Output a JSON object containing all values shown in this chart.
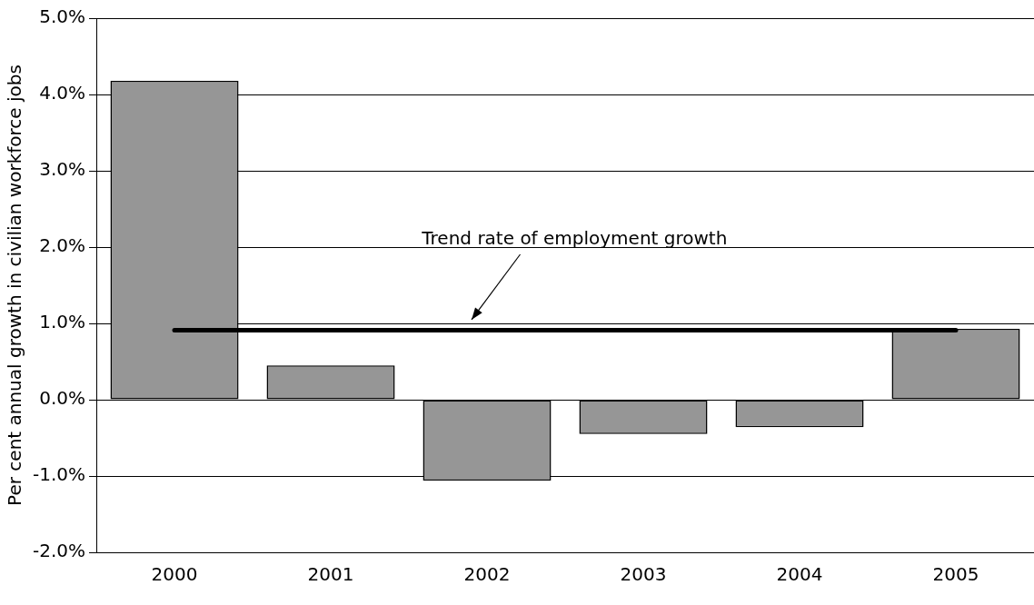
{
  "chart_data": {
    "type": "bar",
    "ylabel": "Per cent annual growth in civilian workforce jobs",
    "categories": [
      "2000",
      "2001",
      "2002",
      "2003",
      "2004",
      "2005"
    ],
    "series": [
      {
        "color": "#969696",
        "values": [
          4.18,
          0.45,
          -1.06,
          -0.45,
          -0.36,
          0.93
        ]
      },
      {
        "type": "line",
        "color": "#000000",
        "values": [
          0.91,
          0.91,
          0.91,
          0.91,
          0.91,
          0.91
        ]
      }
    ],
    "ylim": [
      -2,
      5
    ],
    "yticks": [
      {
        "value": -2,
        "label": "-2.0%"
      },
      {
        "value": -1,
        "label": "-1.0%"
      },
      {
        "value": 0,
        "label": "0.0%"
      },
      {
        "value": 1,
        "label": "1.0%"
      },
      {
        "value": 2,
        "label": "2.0%"
      },
      {
        "value": 3,
        "label": "3.0%"
      },
      {
        "value": 4,
        "label": "4.0%"
      },
      {
        "value": 5,
        "label": "5.0%"
      }
    ],
    "grid": "y",
    "legend": false,
    "marker": "none",
    "line_style": "solid",
    "annotations": [
      "Trend rate of employment growth"
    ]
  }
}
